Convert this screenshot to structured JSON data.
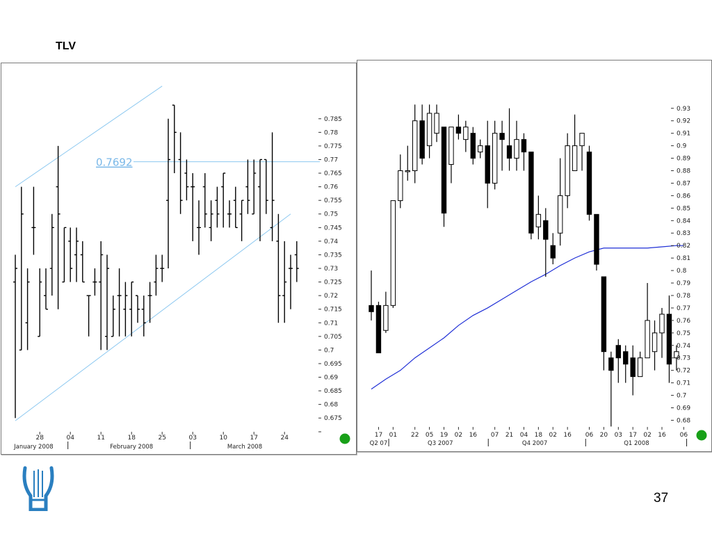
{
  "slide": {
    "title": "TLV",
    "page_number": "37"
  },
  "colors": {
    "channel": "#8cc8f0",
    "level_label": "#7ab8e8",
    "moving_average": "#1f2fd6",
    "status_dot": "#18a018",
    "bars": "#000000",
    "logo": "#2a7fc0"
  },
  "icons": {
    "status_left": "green-dot-icon",
    "status_right": "green-dot-icon",
    "logo": "lyre-logo-icon"
  },
  "chart_data": [
    {
      "type": "ohlc",
      "ylim": [
        0.6725,
        0.7875
      ],
      "y_ticks": [
        "0.785",
        "0.78",
        "0.775",
        "0.77",
        "0.765",
        "0.76",
        "0.755",
        "0.75",
        "0.745",
        "0.74",
        "0.735",
        "0.73",
        "0.725",
        "0.72",
        "0.715",
        "0.71",
        "0.705",
        "0.7",
        "0.695",
        "0.69",
        "0.685",
        "0.68",
        "0.675"
      ],
      "x_tick_labels": [
        {
          "label": "28",
          "i": 4
        },
        {
          "label": "04",
          "i": 9
        },
        {
          "label": "11",
          "i": 14
        },
        {
          "label": "18",
          "i": 19
        },
        {
          "label": "25",
          "i": 24
        },
        {
          "label": "03",
          "i": 29
        },
        {
          "label": "10",
          "i": 34
        },
        {
          "label": "17",
          "i": 39
        },
        {
          "label": "24",
          "i": 44
        }
      ],
      "period_labels": [
        {
          "label": "January 2008",
          "i": 3
        },
        {
          "label": "February 2008",
          "i": 19
        },
        {
          "label": "March 2008",
          "i": 37.5
        }
      ],
      "period_separators": [
        8.6,
        28.6
      ],
      "level_line": {
        "value": 0.7692,
        "label": "0.7692"
      },
      "channel_lines": [
        {
          "from": {
            "i": 0,
            "v": 0.76
          },
          "to": {
            "i": 24,
            "v": 0.797
          }
        },
        {
          "from": {
            "i": 0,
            "v": 0.674
          },
          "to": {
            "i": 45,
            "v": 0.75
          }
        }
      ],
      "bars": [
        {
          "o": 0.725,
          "h": 0.735,
          "l": 0.675,
          "c": 0.73
        },
        {
          "o": 0.7,
          "h": 0.76,
          "l": 0.7,
          "c": 0.75
        },
        {
          "o": 0.71,
          "h": 0.73,
          "l": 0.7,
          "c": 0.725
        },
        {
          "o": 0.745,
          "h": 0.76,
          "l": 0.735,
          "c": 0.745
        },
        {
          "o": 0.705,
          "h": 0.73,
          "l": 0.705,
          "c": 0.725
        },
        {
          "o": 0.72,
          "h": 0.73,
          "l": 0.715,
          "c": 0.715
        },
        {
          "o": 0.73,
          "h": 0.75,
          "l": 0.72,
          "c": 0.745
        },
        {
          "o": 0.76,
          "h": 0.775,
          "l": 0.715,
          "c": 0.75
        },
        {
          "o": 0.725,
          "h": 0.745,
          "l": 0.725,
          "c": 0.745
        },
        {
          "o": 0.74,
          "h": 0.745,
          "l": 0.725,
          "c": 0.73
        },
        {
          "o": 0.735,
          "h": 0.745,
          "l": 0.725,
          "c": 0.74
        },
        {
          "o": 0.735,
          "h": 0.74,
          "l": 0.725,
          "c": 0.725
        },
        {
          "o": 0.72,
          "h": 0.72,
          "l": 0.705,
          "c": 0.72
        },
        {
          "o": 0.725,
          "h": 0.73,
          "l": 0.72,
          "c": 0.725
        },
        {
          "o": 0.725,
          "h": 0.74,
          "l": 0.7,
          "c": 0.735
        },
        {
          "o": 0.705,
          "h": 0.735,
          "l": 0.7,
          "c": 0.73
        },
        {
          "o": 0.705,
          "h": 0.72,
          "l": 0.705,
          "c": 0.715
        },
        {
          "o": 0.72,
          "h": 0.73,
          "l": 0.705,
          "c": 0.72
        },
        {
          "o": 0.715,
          "h": 0.725,
          "l": 0.705,
          "c": 0.72
        },
        {
          "o": 0.715,
          "h": 0.725,
          "l": 0.705,
          "c": 0.725
        },
        {
          "o": 0.72,
          "h": 0.72,
          "l": 0.71,
          "c": 0.715
        },
        {
          "o": 0.715,
          "h": 0.72,
          "l": 0.705,
          "c": 0.71
        },
        {
          "o": 0.72,
          "h": 0.725,
          "l": 0.71,
          "c": 0.72
        },
        {
          "o": 0.725,
          "h": 0.735,
          "l": 0.72,
          "c": 0.73
        },
        {
          "o": 0.73,
          "h": 0.735,
          "l": 0.725,
          "c": 0.73
        },
        {
          "o": 0.755,
          "h": 0.785,
          "l": 0.73,
          "c": 0.77
        },
        {
          "o": 0.79,
          "h": 0.79,
          "l": 0.765,
          "c": 0.78
        },
        {
          "o": 0.77,
          "h": 0.78,
          "l": 0.75,
          "c": 0.755
        },
        {
          "o": 0.765,
          "h": 0.77,
          "l": 0.755,
          "c": 0.76
        },
        {
          "o": 0.76,
          "h": 0.765,
          "l": 0.74,
          "c": 0.76
        },
        {
          "o": 0.745,
          "h": 0.755,
          "l": 0.735,
          "c": 0.745
        },
        {
          "o": 0.76,
          "h": 0.765,
          "l": 0.745,
          "c": 0.75
        },
        {
          "o": 0.745,
          "h": 0.755,
          "l": 0.74,
          "c": 0.75
        },
        {
          "o": 0.755,
          "h": 0.76,
          "l": 0.745,
          "c": 0.75
        },
        {
          "o": 0.76,
          "h": 0.765,
          "l": 0.745,
          "c": 0.765
        },
        {
          "o": 0.75,
          "h": 0.755,
          "l": 0.745,
          "c": 0.75
        },
        {
          "o": 0.755,
          "h": 0.76,
          "l": 0.745,
          "c": 0.745
        },
        {
          "o": 0.75,
          "h": 0.755,
          "l": 0.74,
          "c": 0.755
        },
        {
          "o": 0.76,
          "h": 0.77,
          "l": 0.75,
          "c": 0.755
        },
        {
          "o": 0.75,
          "h": 0.77,
          "l": 0.75,
          "c": 0.765
        },
        {
          "o": 0.76,
          "h": 0.77,
          "l": 0.74,
          "c": 0.77
        },
        {
          "o": 0.77,
          "h": 0.77,
          "l": 0.75,
          "c": 0.755
        },
        {
          "o": 0.745,
          "h": 0.78,
          "l": 0.74,
          "c": 0.755
        },
        {
          "o": 0.74,
          "h": 0.75,
          "l": 0.71,
          "c": 0.72
        },
        {
          "o": 0.72,
          "h": 0.74,
          "l": 0.71,
          "c": 0.725
        },
        {
          "o": 0.73,
          "h": 0.735,
          "l": 0.715,
          "c": 0.73
        },
        {
          "o": 0.735,
          "h": 0.74,
          "l": 0.725,
          "c": 0.73
        }
      ]
    },
    {
      "type": "candlestick",
      "ylim": [
        0.673,
        0.936
      ],
      "y_ticks": [
        "0.93",
        "0.92",
        "0.91",
        "0.9",
        "0.89",
        "0.88",
        "0.87",
        "0.86",
        "0.85",
        "0.84",
        "0.83",
        "0.82",
        "0.81",
        "0.8",
        "0.79",
        "0.78",
        "0.77",
        "0.76",
        "0.75",
        "0.74",
        "0.73",
        "0.72",
        "0.71",
        "0.7",
        "0.69",
        "0.68"
      ],
      "x_tick_labels": [
        {
          "label": "17",
          "i": 1
        },
        {
          "label": "01",
          "i": 3
        },
        {
          "label": "22",
          "i": 6
        },
        {
          "label": "05",
          "i": 8
        },
        {
          "label": "19",
          "i": 10
        },
        {
          "label": "02",
          "i": 12
        },
        {
          "label": "16",
          "i": 14
        },
        {
          "label": "07",
          "i": 17
        },
        {
          "label": "21",
          "i": 19
        },
        {
          "label": "04",
          "i": 21
        },
        {
          "label": "18",
          "i": 23
        },
        {
          "label": "02",
          "i": 25
        },
        {
          "label": "16",
          "i": 27
        },
        {
          "label": "06",
          "i": 30
        },
        {
          "label": "20",
          "i": 32
        },
        {
          "label": "03",
          "i": 34
        },
        {
          "label": "17",
          "i": 36
        },
        {
          "label": "02",
          "i": 38
        },
        {
          "label": "16",
          "i": 40
        },
        {
          "label": "06",
          "i": 43
        }
      ],
      "period_labels": [
        {
          "label": "Q2 07",
          "i": 1
        },
        {
          "label": "Q3 2007",
          "i": 9.5
        },
        {
          "label": "Q4 2007",
          "i": 22.5
        },
        {
          "label": "Q1 2008",
          "i": 36.5
        }
      ],
      "period_separators": [
        2.4,
        16.1,
        29.5,
        43.4
      ],
      "moving_average": [
        {
          "i": 0,
          "v": 0.705
        },
        {
          "i": 2,
          "v": 0.713
        },
        {
          "i": 4,
          "v": 0.72
        },
        {
          "i": 6,
          "v": 0.73
        },
        {
          "i": 8,
          "v": 0.738
        },
        {
          "i": 10,
          "v": 0.746
        },
        {
          "i": 12,
          "v": 0.756
        },
        {
          "i": 14,
          "v": 0.764
        },
        {
          "i": 16,
          "v": 0.77
        },
        {
          "i": 18,
          "v": 0.777
        },
        {
          "i": 20,
          "v": 0.784
        },
        {
          "i": 22,
          "v": 0.791
        },
        {
          "i": 24,
          "v": 0.797
        },
        {
          "i": 26,
          "v": 0.804
        },
        {
          "i": 28,
          "v": 0.81
        },
        {
          "i": 30,
          "v": 0.815
        },
        {
          "i": 32,
          "v": 0.818
        },
        {
          "i": 34,
          "v": 0.818
        },
        {
          "i": 36,
          "v": 0.818
        },
        {
          "i": 38,
          "v": 0.818
        },
        {
          "i": 40,
          "v": 0.819
        },
        {
          "i": 42,
          "v": 0.82
        },
        {
          "i": 43,
          "v": 0.82
        }
      ],
      "candles": [
        {
          "o": 0.772,
          "h": 0.8,
          "l": 0.76,
          "c": 0.767
        },
        {
          "o": 0.772,
          "h": 0.775,
          "l": 0.734,
          "c": 0.734
        },
        {
          "o": 0.752,
          "h": 0.783,
          "l": 0.75,
          "c": 0.772
        },
        {
          "o": 0.772,
          "h": 0.856,
          "l": 0.77,
          "c": 0.856
        },
        {
          "o": 0.856,
          "h": 0.893,
          "l": 0.85,
          "c": 0.88
        },
        {
          "o": 0.88,
          "h": 0.9,
          "l": 0.872,
          "c": 0.88
        },
        {
          "o": 0.88,
          "h": 0.933,
          "l": 0.87,
          "c": 0.92
        },
        {
          "o": 0.92,
          "h": 0.933,
          "l": 0.885,
          "c": 0.89
        },
        {
          "o": 0.9,
          "h": 0.933,
          "l": 0.89,
          "c": 0.926
        },
        {
          "o": 0.91,
          "h": 0.933,
          "l": 0.903,
          "c": 0.926
        },
        {
          "o": 0.915,
          "h": 0.915,
          "l": 0.835,
          "c": 0.846
        },
        {
          "o": 0.885,
          "h": 0.915,
          "l": 0.87,
          "c": 0.915
        },
        {
          "o": 0.915,
          "h": 0.925,
          "l": 0.905,
          "c": 0.91
        },
        {
          "o": 0.905,
          "h": 0.92,
          "l": 0.895,
          "c": 0.915
        },
        {
          "o": 0.91,
          "h": 0.915,
          "l": 0.885,
          "c": 0.89
        },
        {
          "o": 0.895,
          "h": 0.905,
          "l": 0.89,
          "c": 0.9
        },
        {
          "o": 0.9,
          "h": 0.92,
          "l": 0.85,
          "c": 0.87
        },
        {
          "o": 0.87,
          "h": 0.92,
          "l": 0.865,
          "c": 0.91
        },
        {
          "o": 0.91,
          "h": 0.92,
          "l": 0.88,
          "c": 0.905
        },
        {
          "o": 0.9,
          "h": 0.93,
          "l": 0.88,
          "c": 0.89
        },
        {
          "o": 0.89,
          "h": 0.92,
          "l": 0.88,
          "c": 0.905
        },
        {
          "o": 0.905,
          "h": 0.91,
          "l": 0.88,
          "c": 0.895
        },
        {
          "o": 0.895,
          "h": 0.895,
          "l": 0.825,
          "c": 0.83
        },
        {
          "o": 0.835,
          "h": 0.86,
          "l": 0.825,
          "c": 0.845
        },
        {
          "o": 0.84,
          "h": 0.85,
          "l": 0.795,
          "c": 0.825
        },
        {
          "o": 0.82,
          "h": 0.83,
          "l": 0.805,
          "c": 0.81
        },
        {
          "o": 0.83,
          "h": 0.89,
          "l": 0.82,
          "c": 0.86
        },
        {
          "o": 0.86,
          "h": 0.91,
          "l": 0.85,
          "c": 0.9
        },
        {
          "o": 0.88,
          "h": 0.925,
          "l": 0.88,
          "c": 0.9
        },
        {
          "o": 0.9,
          "h": 0.91,
          "l": 0.88,
          "c": 0.91
        },
        {
          "o": 0.895,
          "h": 0.9,
          "l": 0.84,
          "c": 0.845
        },
        {
          "o": 0.845,
          "h": 0.845,
          "l": 0.8,
          "c": 0.805
        },
        {
          "o": 0.795,
          "h": 0.795,
          "l": 0.72,
          "c": 0.735
        },
        {
          "o": 0.73,
          "h": 0.735,
          "l": 0.675,
          "c": 0.72
        },
        {
          "o": 0.74,
          "h": 0.745,
          "l": 0.71,
          "c": 0.73
        },
        {
          "o": 0.735,
          "h": 0.74,
          "l": 0.71,
          "c": 0.725
        },
        {
          "o": 0.73,
          "h": 0.74,
          "l": 0.7,
          "c": 0.715
        },
        {
          "o": 0.715,
          "h": 0.735,
          "l": 0.715,
          "c": 0.73
        },
        {
          "o": 0.73,
          "h": 0.79,
          "l": 0.73,
          "c": 0.76
        },
        {
          "o": 0.735,
          "h": 0.76,
          "l": 0.72,
          "c": 0.75
        },
        {
          "o": 0.75,
          "h": 0.77,
          "l": 0.73,
          "c": 0.765
        },
        {
          "o": 0.765,
          "h": 0.78,
          "l": 0.71,
          "c": 0.725
        },
        {
          "o": 0.73,
          "h": 0.74,
          "l": 0.72,
          "c": 0.735
        }
      ]
    }
  ]
}
